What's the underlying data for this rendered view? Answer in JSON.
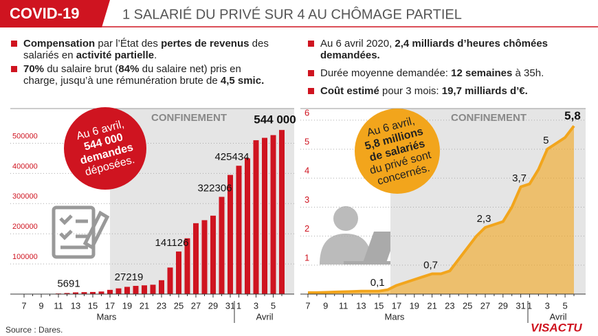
{
  "header": {
    "tag": "COVID-19",
    "title": "1 SALARIÉ DU PRIVÉ SUR 4 AU CHÔMAGE PARTIEL"
  },
  "bullets_left": [
    [
      {
        "text": "Compensation",
        "bold": true
      },
      {
        "text": " par l’État des ",
        "bold": false
      },
      {
        "text": "pertes de revenus",
        "bold": true
      },
      {
        "text": " des salariés en ",
        "bold": false
      },
      {
        "text": "activité partielle",
        "bold": true
      },
      {
        "text": ".",
        "bold": false
      }
    ],
    [
      {
        "text": "70%",
        "bold": true
      },
      {
        "text": " du salaire brut (",
        "bold": false
      },
      {
        "text": "84%",
        "bold": true
      },
      {
        "text": " du salaire net) pris en charge, jusqu’à une rémunération brute de ",
        "bold": false
      },
      {
        "text": "4,5 smic.",
        "bold": true
      }
    ]
  ],
  "bullets_right": [
    [
      {
        "text": "Au 6 avril 2020, ",
        "bold": false
      },
      {
        "text": "2,4 milliards d’heures chômées demandées.",
        "bold": true
      }
    ],
    [
      {
        "text": "Durée moyenne demandée: ",
        "bold": false
      },
      {
        "text": "12 semaines",
        "bold": true
      },
      {
        "text": " à 35h.",
        "bold": false
      }
    ],
    [
      {
        "text": "Coût estimé",
        "bold": true
      },
      {
        "text": " pour 3 mois: ",
        "bold": false
      },
      {
        "text": "19,7 milliards d’€.",
        "bold": true
      }
    ]
  ],
  "chart_data": [
    {
      "type": "bar",
      "color": "#cf1420",
      "shade_label": "CONFINEMENT",
      "grid": true,
      "categories": [
        "7",
        null,
        "9",
        null,
        "11",
        null,
        "13",
        null,
        "15",
        null,
        "17",
        null,
        "19",
        null,
        "21",
        null,
        "23",
        null,
        "25",
        null,
        "27",
        null,
        "29",
        null,
        "31",
        "1",
        null,
        "3",
        null,
        "5",
        null
      ],
      "values": [
        0,
        0,
        0,
        1000,
        2000,
        3500,
        5691,
        6500,
        7000,
        8500,
        14000,
        19000,
        24000,
        27219,
        29000,
        31000,
        46000,
        88000,
        141126,
        185000,
        235000,
        245000,
        260000,
        322306,
        395000,
        425434,
        450000,
        510000,
        518000,
        527000,
        544000
      ],
      "value_labels": [
        null,
        null,
        null,
        null,
        null,
        null,
        "5691",
        null,
        null,
        null,
        null,
        null,
        null,
        "27219",
        null,
        null,
        null,
        null,
        "141126",
        null,
        null,
        null,
        null,
        "322306",
        null,
        "425434",
        null,
        null,
        null,
        null,
        "544 000"
      ],
      "month_labels": [
        "Mars",
        "Avril"
      ],
      "ylim": [
        0,
        615000
      ],
      "yticks": [
        100000,
        200000,
        300000,
        400000,
        500000
      ],
      "annotation": [
        {
          "text": "Au 6 avril,",
          "bold": false
        },
        {
          "text": "544 000",
          "bold": true
        },
        {
          "text": "demandes",
          "bold": true
        },
        {
          "text": "déposées.",
          "bold": false
        }
      ]
    },
    {
      "type": "area",
      "color": "#f2a51c",
      "shade_label": "CONFINEMENT",
      "grid": true,
      "categories": [
        "7",
        null,
        "9",
        null,
        "11",
        null,
        "13",
        null,
        "15",
        null,
        "17",
        null,
        "19",
        null,
        "21",
        null,
        "23",
        null,
        "25",
        null,
        "27",
        null,
        "29",
        null,
        "31",
        "1",
        null,
        "3",
        null,
        "5",
        null
      ],
      "values": [
        0.05,
        0.05,
        0.06,
        0.07,
        0.08,
        0.09,
        0.1,
        0.1,
        0.1,
        0.15,
        0.3,
        0.4,
        0.5,
        0.6,
        0.7,
        0.7,
        0.8,
        1.2,
        1.6,
        2.0,
        2.3,
        2.4,
        2.5,
        3.0,
        3.7,
        3.8,
        4.3,
        5,
        5.2,
        5.4,
        5.8
      ],
      "value_labels": [
        null,
        null,
        null,
        null,
        null,
        null,
        null,
        null,
        "0,1",
        null,
        null,
        null,
        null,
        null,
        "0,7",
        null,
        null,
        null,
        null,
        null,
        "2,3",
        null,
        null,
        null,
        "3,7",
        null,
        null,
        "5",
        null,
        null,
        "5,8"
      ],
      "month_labels": [
        "Mars",
        "Avril"
      ],
      "ylim": [
        0,
        6.4
      ],
      "yticks": [
        1,
        2,
        3,
        4,
        5,
        6
      ],
      "annotation": [
        {
          "text": "Au 6 avril,",
          "bold": false
        },
        {
          "text": "5,8 millions",
          "bold": true
        },
        {
          "text": "de salariés",
          "bold": true
        },
        {
          "text": "du privé sont",
          "bold": false
        },
        {
          "text": "concernés.",
          "bold": false
        }
      ]
    }
  ],
  "source": "Source : Dares.",
  "logo": "VISACTU"
}
